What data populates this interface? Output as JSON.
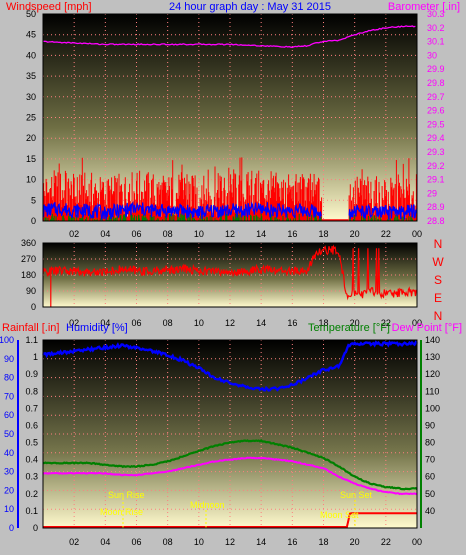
{
  "header": {
    "left_label": "Windspeed [mph]",
    "title": "24 hour graph day : May 31 2015",
    "right_label": "Barometer [.in]"
  },
  "colors": {
    "background": "#c0c0c0",
    "wind": "#ff0000",
    "gust": "#ff0000",
    "avg": "#0000ff",
    "calm": "#008000",
    "baro": "#ff00ff",
    "dir": "#ff0000",
    "humidity": "#0000ff",
    "temp": "#008000",
    "dew": "#ff00ff",
    "rain": "#ff0000",
    "sun": "#ffff00",
    "grid": "#ff7f7f"
  },
  "x_ticks": [
    "02",
    "04",
    "06",
    "08",
    "10",
    "12",
    "14",
    "16",
    "18",
    "20",
    "22",
    "00"
  ],
  "panel3_labels": {
    "rain": "Rainfall [.in]",
    "humidity": "Humidity [%]",
    "temperature": "Temperature [°F]",
    "dew": "Dew Point [°F]"
  },
  "annotations": {
    "sunrise": "Sun Rise",
    "solar_noon": "Midnoon",
    "sunset": "Sun Set",
    "moonrise": "Moon Rise",
    "moonset": "Moon Set"
  },
  "chart_data": [
    {
      "type": "line",
      "name": "wind-panel",
      "title": "24 hour graph day : May 31 2015",
      "ylabel_left": "Windspeed [mph]",
      "ylabel_right": "Barometer [.in]",
      "xlim": [
        0,
        24
      ],
      "ylim_left": [
        0,
        50
      ],
      "ylim_right": [
        28.8,
        30.3
      ],
      "left_ticks": [
        0,
        5,
        10,
        15,
        20,
        25,
        30,
        35,
        40,
        45,
        50
      ],
      "right_ticks": [
        "28.8",
        "28.9",
        "29",
        "29.1",
        "29.2",
        "29.3",
        "29.4",
        "29.5",
        "29.6",
        "29.7",
        "29.8",
        "29.9",
        "30",
        "30.1",
        "30.2",
        "30.3"
      ],
      "grid": true,
      "gap": [
        17.9,
        19.6
      ],
      "series": [
        {
          "key": "gust",
          "x": [
            0.0,
            1.0,
            2.0,
            3.0,
            4.0,
            5.0,
            6.0,
            7.0,
            8.0,
            9.0,
            10.0,
            11.0,
            12.0,
            13.0,
            14.0,
            15.0,
            16.0,
            17.0,
            17.9,
            19.6,
            20.0,
            21.0,
            22.0,
            23.0,
            24.0
          ],
          "y": [
            6.5,
            7,
            6,
            6.5,
            5.5,
            6,
            7,
            6.5,
            6,
            6.5,
            5.5,
            6,
            6.5,
            6.5,
            7,
            6.5,
            6,
            6.5,
            5.5,
            5.5,
            6,
            5.5,
            5,
            5.5,
            6
          ]
        },
        {
          "key": "avg",
          "x": [
            0.0,
            1.0,
            2.0,
            3.0,
            4.0,
            5.0,
            6.0,
            7.0,
            8.0,
            9.0,
            10.0,
            11.0,
            12.0,
            13.0,
            14.0,
            15.0,
            16.0,
            17.0,
            17.9,
            19.6,
            20.0,
            21.0,
            22.0,
            23.0,
            24.0
          ],
          "y": [
            2.5,
            3,
            2.5,
            2.5,
            2,
            2.5,
            3,
            2.5,
            2.5,
            2.5,
            2,
            2.5,
            2.5,
            2.5,
            3,
            2.5,
            2.5,
            2.5,
            2,
            2,
            2.5,
            2,
            2,
            2,
            2.5
          ]
        },
        {
          "key": "baro",
          "x": [
            0,
            2,
            4,
            6,
            8,
            10,
            12,
            14,
            16,
            17,
            17.5,
            18,
            19,
            20,
            21,
            22,
            23,
            24
          ],
          "y": [
            30.1,
            30.09,
            30.08,
            30.08,
            30.08,
            30.08,
            30.08,
            30.07,
            30.06,
            30.07,
            30.09,
            30.1,
            30.11,
            30.15,
            30.18,
            30.2,
            30.21,
            30.21
          ]
        }
      ]
    },
    {
      "type": "line",
      "name": "direction-panel",
      "xlim": [
        0,
        24
      ],
      "ylim": [
        0,
        360
      ],
      "ticks": [
        0,
        90,
        180,
        270,
        360
      ],
      "compass_labels": [
        "N",
        "W",
        "S",
        "E",
        "N"
      ],
      "grid": true,
      "series": [
        {
          "key": "dir",
          "x": [
            0,
            1,
            2,
            3,
            4,
            5,
            6,
            7,
            8,
            9,
            10,
            11,
            12,
            13,
            14,
            15,
            16,
            17,
            17.5,
            18,
            18.5,
            19,
            19.5,
            20,
            20.5,
            21,
            22,
            23,
            24
          ],
          "y": [
            195,
            205,
            200,
            195,
            200,
            210,
            205,
            200,
            210,
            215,
            205,
            200,
            195,
            200,
            210,
            205,
            200,
            205,
            300,
            320,
            320,
            310,
            60,
            80,
            70,
            90,
            75,
            80,
            85
          ]
        }
      ]
    },
    {
      "type": "line",
      "name": "temp-panel",
      "ylabel_left_outer": "Rainfall [.in]",
      "ylabel_left_inner": "Humidity [%]",
      "ylabel_right": "Temperature [°F]",
      "ylabel_right2": "Dew Point [°F]",
      "xlim": [
        0,
        24
      ],
      "ylim_rain": [
        0,
        1.1
      ],
      "ylim_humidity": [
        0,
        100
      ],
      "ylim_temp": [
        30,
        140
      ],
      "rain_ticks": [
        "0",
        "0.1",
        "0.2",
        "0.3",
        "0.4",
        "0.5",
        "0.6",
        "0.7",
        "0.8",
        "0.9",
        "1",
        "1.1"
      ],
      "humidity_ticks": [
        0,
        10,
        20,
        30,
        40,
        50,
        60,
        70,
        80,
        90,
        100
      ],
      "temp_ticks": [
        40,
        50,
        60,
        70,
        80,
        90,
        100,
        110,
        120,
        130,
        140
      ],
      "grid": true,
      "series": [
        {
          "key": "humidity",
          "x": [
            0,
            1,
            2,
            3,
            4,
            5,
            6,
            7,
            8,
            9,
            10,
            11,
            12,
            13,
            14,
            15,
            16,
            17,
            18,
            19,
            19.6,
            20,
            21,
            22,
            23,
            24
          ],
          "y": [
            92,
            93,
            94,
            95,
            96,
            97,
            96,
            94,
            92,
            89,
            85,
            80,
            77,
            75,
            74,
            74,
            76,
            80,
            84,
            86,
            97,
            98,
            98,
            98,
            98,
            98
          ]
        },
        {
          "key": "temp",
          "x": [
            0,
            1,
            2,
            3,
            4,
            5,
            6,
            7,
            8,
            9,
            10,
            11,
            12,
            13,
            14,
            15,
            16,
            17,
            18,
            19,
            20,
            21,
            22,
            23,
            24
          ],
          "y": [
            68,
            68,
            68,
            68,
            67,
            66,
            66,
            67,
            69,
            72,
            75,
            78,
            80,
            81,
            81,
            79,
            77,
            74,
            71,
            66,
            60,
            56,
            54,
            53,
            53
          ]
        },
        {
          "key": "dew",
          "x": [
            0,
            1,
            2,
            3,
            4,
            5,
            6,
            7,
            8,
            9,
            10,
            11,
            12,
            13,
            14,
            15,
            16,
            17,
            18,
            19,
            20,
            21,
            22,
            23,
            24
          ],
          "y": [
            62,
            62,
            62,
            62,
            62,
            61,
            61,
            62,
            63,
            65,
            67,
            69,
            70,
            71,
            71,
            70,
            69,
            67,
            65,
            60,
            56,
            53,
            51,
            50,
            50
          ]
        },
        {
          "key": "rain",
          "x": [
            0,
            19.5,
            19.7,
            24
          ],
          "y": [
            0,
            0,
            0.08,
            0.08
          ]
        }
      ]
    }
  ]
}
